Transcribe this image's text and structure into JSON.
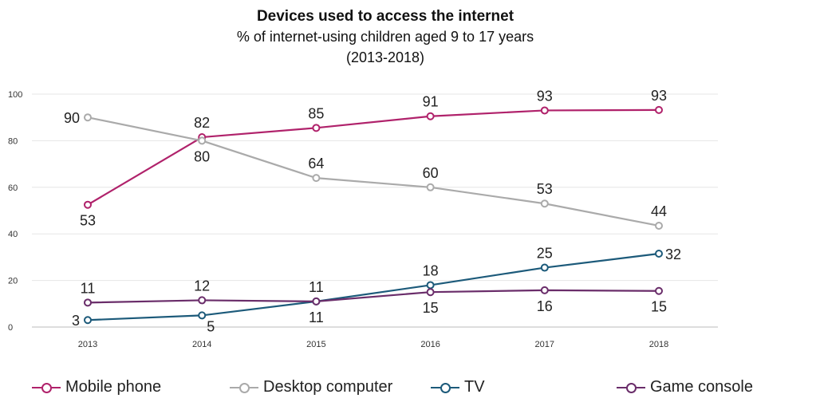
{
  "chart_data": {
    "type": "line",
    "title": "Devices used to access the internet",
    "subtitle": "% of internet-using children aged 9 to 17 years",
    "subtitle2": "(2013-2018)",
    "x": [
      "2013",
      "2014",
      "2015",
      "2016",
      "2017",
      "2018"
    ],
    "ylim": [
      0,
      100
    ],
    "yticks": [
      0,
      20,
      40,
      60,
      80,
      100
    ],
    "ytick_labels": [
      "0",
      "20",
      "40",
      "60",
      "80",
      "100"
    ],
    "grid": true,
    "legend_position": "bottom",
    "series": [
      {
        "name": "Mobile phone",
        "color": "#b0226b",
        "values": [
          52.5,
          81.5,
          85.5,
          90.5,
          93,
          93.2
        ],
        "labels": [
          "53",
          "82",
          "85",
          "91",
          "93",
          "93"
        ],
        "label_pos": [
          "below",
          "above",
          "above",
          "above",
          "above",
          "above"
        ]
      },
      {
        "name": "Desktop computer",
        "color": "#aaaaaa",
        "values": [
          90,
          80,
          64,
          60,
          53,
          43.5
        ],
        "labels": [
          "90",
          "80",
          "64",
          "60",
          "53",
          "44"
        ],
        "label_pos": [
          "left",
          "below",
          "above",
          "above",
          "above",
          "above"
        ]
      },
      {
        "name": "TV",
        "color": "#1c5a7a",
        "values": [
          3,
          5,
          11,
          18,
          25.5,
          31.5
        ],
        "labels": [
          "3",
          "5",
          "11",
          "18",
          "25",
          "32"
        ],
        "label_pos": [
          "left",
          "belowright",
          "below",
          "above",
          "above",
          "right"
        ]
      },
      {
        "name": "Game console",
        "color": "#6a2d6a",
        "values": [
          10.5,
          11.5,
          11,
          15,
          15.8,
          15.5
        ],
        "labels": [
          "11",
          "12",
          "11",
          "15",
          "16",
          "15"
        ],
        "label_pos": [
          "above",
          "above",
          "above",
          "below",
          "below",
          "below"
        ]
      }
    ]
  }
}
